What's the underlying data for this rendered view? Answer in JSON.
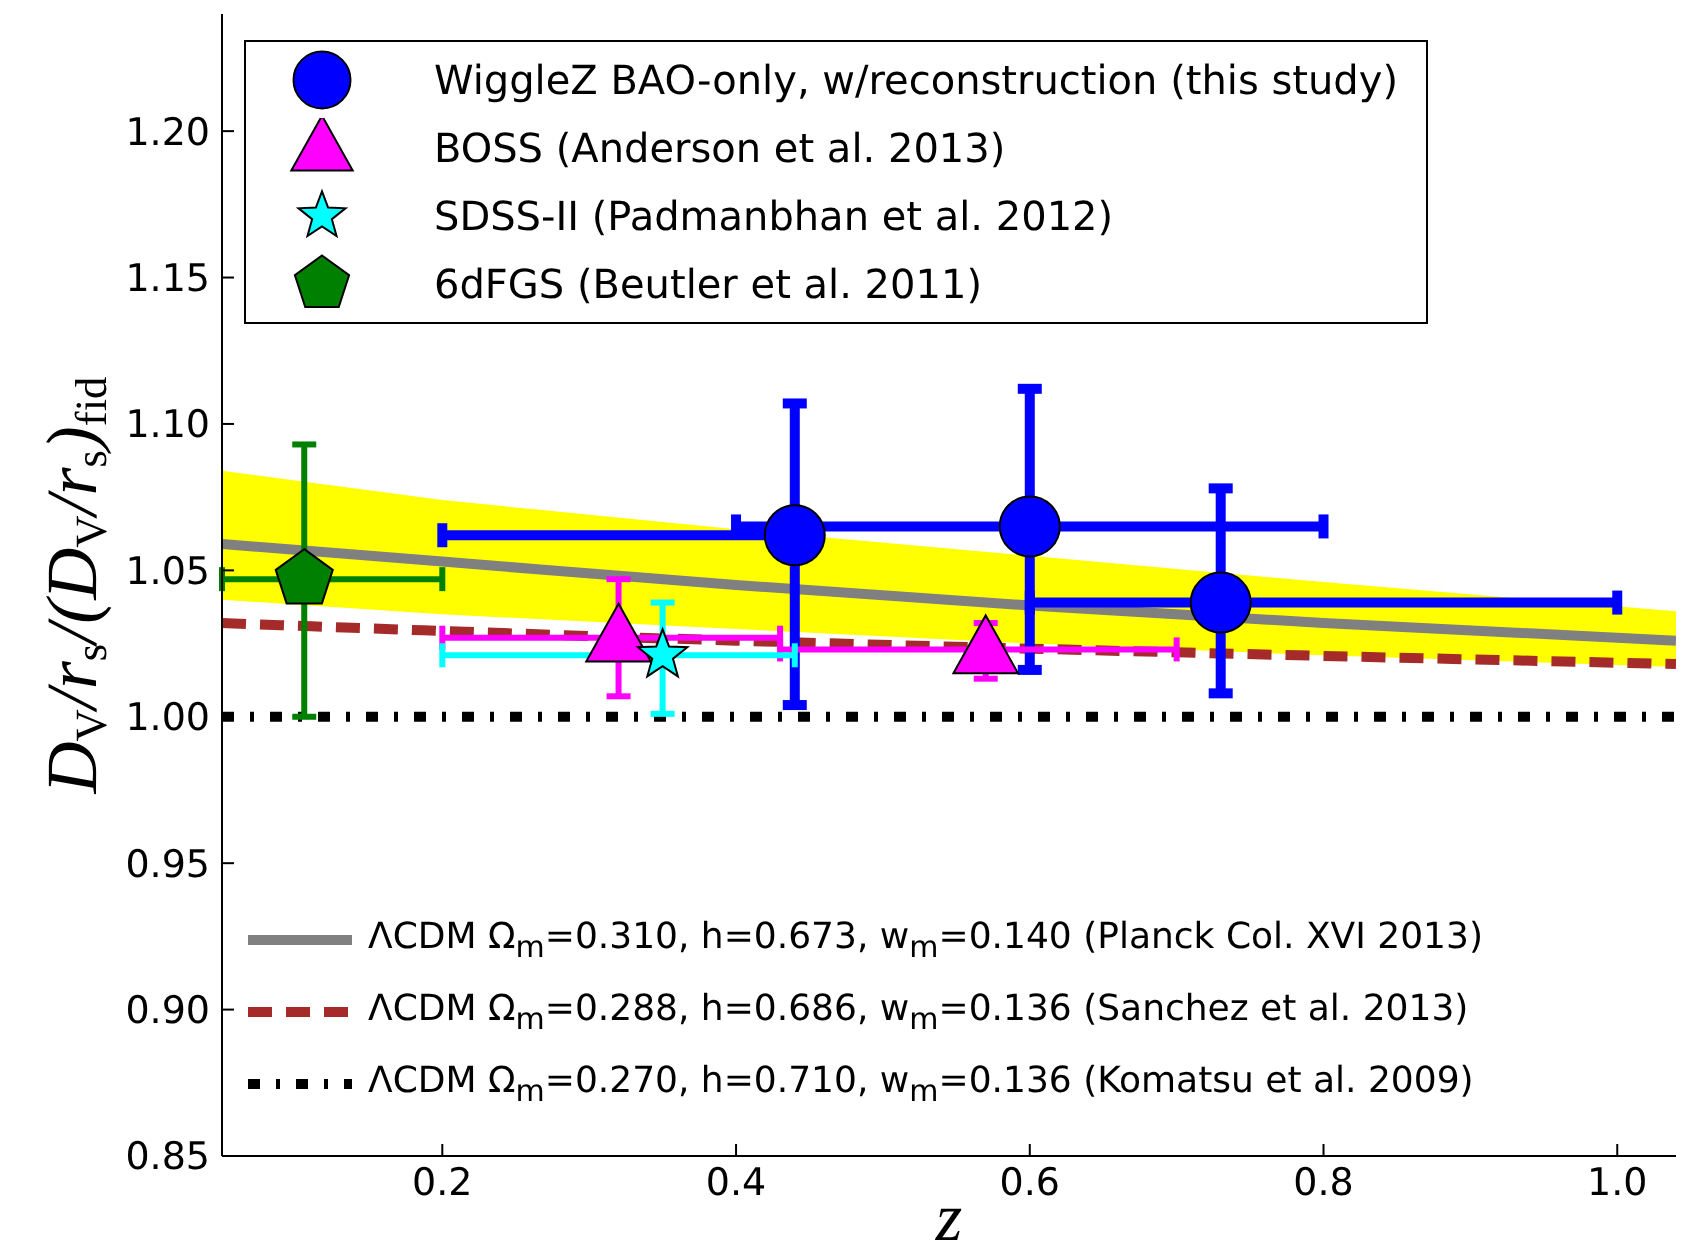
{
  "chart_data": {
    "type": "scatter",
    "xlabel": "z",
    "ylabel": "D$_{V}$/r$_{s}$/(D$_{V}$/r$_{s}$)$_{fid}$",
    "xlim": [
      0.05,
      1.04
    ],
    "ylim": [
      0.85,
      1.24
    ],
    "xticks": [
      0.2,
      0.4,
      0.6,
      0.8,
      {
        "value": 1.0,
        "label": "1.0"
      }
    ],
    "yticks": [
      0.85,
      {
        "value": 0.9,
        "label": "0.90"
      },
      0.95,
      {
        "value": 1.0,
        "label": "1.00"
      },
      1.05,
      {
        "value": 1.1,
        "label": "1.10"
      },
      1.15,
      {
        "value": 1.2,
        "label": "1.20"
      }
    ],
    "legend": "top left",
    "series": [
      {
        "name": "ΛCDM Ω$_{m}$=0.310, h=0.673, w$_{m}$=0.140 (Planck Col. XVI 2013)",
        "type": "line",
        "color": "#808080",
        "line_style": "solid",
        "x": [
          0.05,
          0.2,
          0.4,
          0.6,
          0.8,
          1.04
        ],
        "values": [
          1.059,
          1.053,
          1.045,
          1.038,
          1.032,
          1.026
        ],
        "lower": [
          1.04,
          1.035,
          1.03,
          1.025,
          1.021,
          1.017
        ],
        "upper": [
          1.084,
          1.074,
          1.064,
          1.055,
          1.046,
          1.036
        ]
      },
      {
        "name": "ΛCDM Ω$_{m}$=0.288, h=0.686, w$_{m}$=0.136 (Sanchez et al. 2013)",
        "type": "line",
        "color": "#a52a2a",
        "line_style": "dashed",
        "x": [
          0.05,
          0.4,
          0.7,
          1.04
        ],
        "values": [
          1.032,
          1.026,
          1.022,
          1.018
        ]
      },
      {
        "name": "ΛCDM Ω$_{m}$=0.270, h=0.710, w$_{m}$=0.136 (Komatsu et al. 2009)",
        "type": "line",
        "color": "#000000",
        "line_style": "dashdot",
        "x": [
          0.05,
          1.04
        ],
        "values": [
          1.0,
          1.0
        ]
      },
      {
        "name": "WiggleZ BAO-only, w/reconstruction (this study)",
        "color": "#0000ff",
        "marker": "circle",
        "x": [
          0.44,
          0.6,
          0.73
        ],
        "values": [
          1.062,
          1.065,
          1.039
        ],
        "errors": [
          [
            1.004,
            1.107
          ],
          [
            1.016,
            1.112
          ],
          [
            1.008,
            1.078
          ]
        ],
        "xerrors": [
          [
            0.2,
            0.44
          ],
          [
            0.4,
            0.8
          ],
          [
            0.6,
            1.0
          ]
        ]
      },
      {
        "name": "BOSS (Anderson et al. 2013)",
        "color": "#ff00ff",
        "marker": "triangle",
        "x": [
          0.32,
          0.57
        ],
        "values": [
          1.027,
          1.023
        ],
        "errors": [
          [
            1.007,
            1.047
          ],
          [
            1.013,
            1.032
          ]
        ],
        "xerrors": [
          [
            0.2,
            0.43
          ],
          [
            0.43,
            0.7
          ]
        ]
      },
      {
        "name": "SDSS-II (Padmanbhan et al. 2012)",
        "color": "#00ffff",
        "marker": "star",
        "x": [
          0.35
        ],
        "values": [
          1.021
        ],
        "errors": [
          [
            1.001,
            1.039
          ]
        ],
        "xerrors": [
          [
            0.2,
            0.44
          ]
        ]
      },
      {
        "name": "6dFGS (Beutler et al. 2011)",
        "color": "#008000",
        "x": [
          0.106
        ],
        "values": [
          1.047
        ],
        "errors": [
          [
            1.0,
            1.093
          ]
        ],
        "xerrors": [
          [
            0.05,
            0.2
          ]
        ]
      }
    ]
  }
}
